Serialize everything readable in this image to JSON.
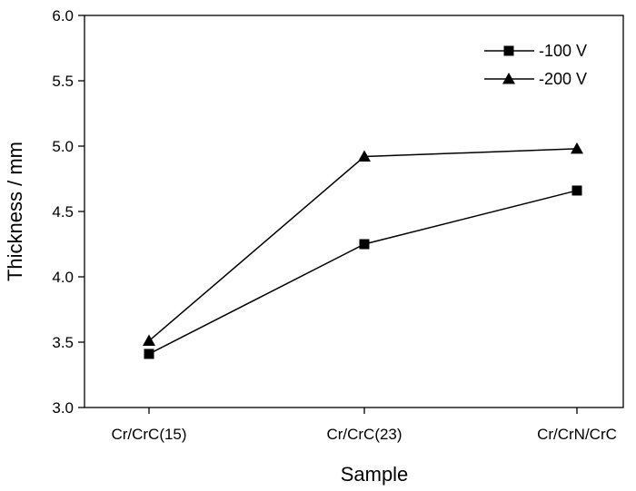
{
  "chart_data": {
    "type": "line",
    "xlabel": "Sample",
    "ylabel": "Thickness / mm",
    "categories": [
      "Cr/CrC(15)",
      "Cr/CrC(23)",
      "Cr/CrN/CrC"
    ],
    "ylim": [
      3.0,
      6.0
    ],
    "yticks": [
      "3.0",
      "3.5",
      "4.0",
      "4.5",
      "5.0",
      "5.5",
      "6.0"
    ],
    "grid": false,
    "legend_position": "top-right",
    "series": [
      {
        "name": "-100 V",
        "marker": "square",
        "color": "#000000",
        "values": [
          3.41,
          4.25,
          4.66
        ]
      },
      {
        "name": "-200 V",
        "marker": "triangle",
        "color": "#000000",
        "values": [
          3.51,
          4.92,
          4.98
        ]
      }
    ]
  }
}
